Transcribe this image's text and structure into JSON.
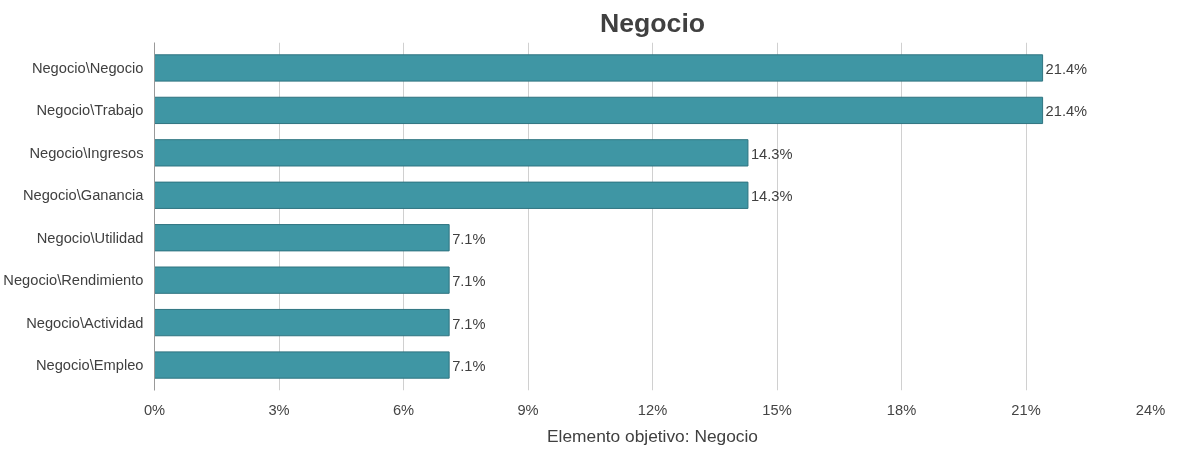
{
  "chart_data": {
    "type": "bar",
    "orientation": "horizontal",
    "title": "Negocio",
    "xlabel": "Elemento objetivo: Negocio",
    "categories": [
      "Negocio\\Negocio",
      "Negocio\\Trabajo",
      "Negocio\\Ingresos",
      "Negocio\\Ganancia",
      "Negocio\\Utilidad",
      "Negocio\\Rendimiento",
      "Negocio\\Actividad",
      "Negocio\\Empleo"
    ],
    "values": [
      21.4,
      21.4,
      14.3,
      14.3,
      7.1,
      7.1,
      7.1,
      7.1
    ],
    "value_labels": [
      "21.4%",
      "21.4%",
      "14.3%",
      "14.3%",
      "7.1%",
      "7.1%",
      "7.1%",
      "7.1%"
    ],
    "color": "#3f96a4",
    "xlim": [
      0,
      24
    ],
    "xticks": [
      {
        "value": 0,
        "label": "0%"
      },
      {
        "value": 3,
        "label": "3%"
      },
      {
        "value": 6,
        "label": "6%"
      },
      {
        "value": 9,
        "label": "9%"
      },
      {
        "value": 12,
        "label": "12%"
      },
      {
        "value": 15,
        "label": "15%"
      },
      {
        "value": 18,
        "label": "18%"
      },
      {
        "value": 21,
        "label": "21%"
      },
      {
        "value": 24,
        "label": "24%"
      }
    ],
    "grid": "x"
  }
}
